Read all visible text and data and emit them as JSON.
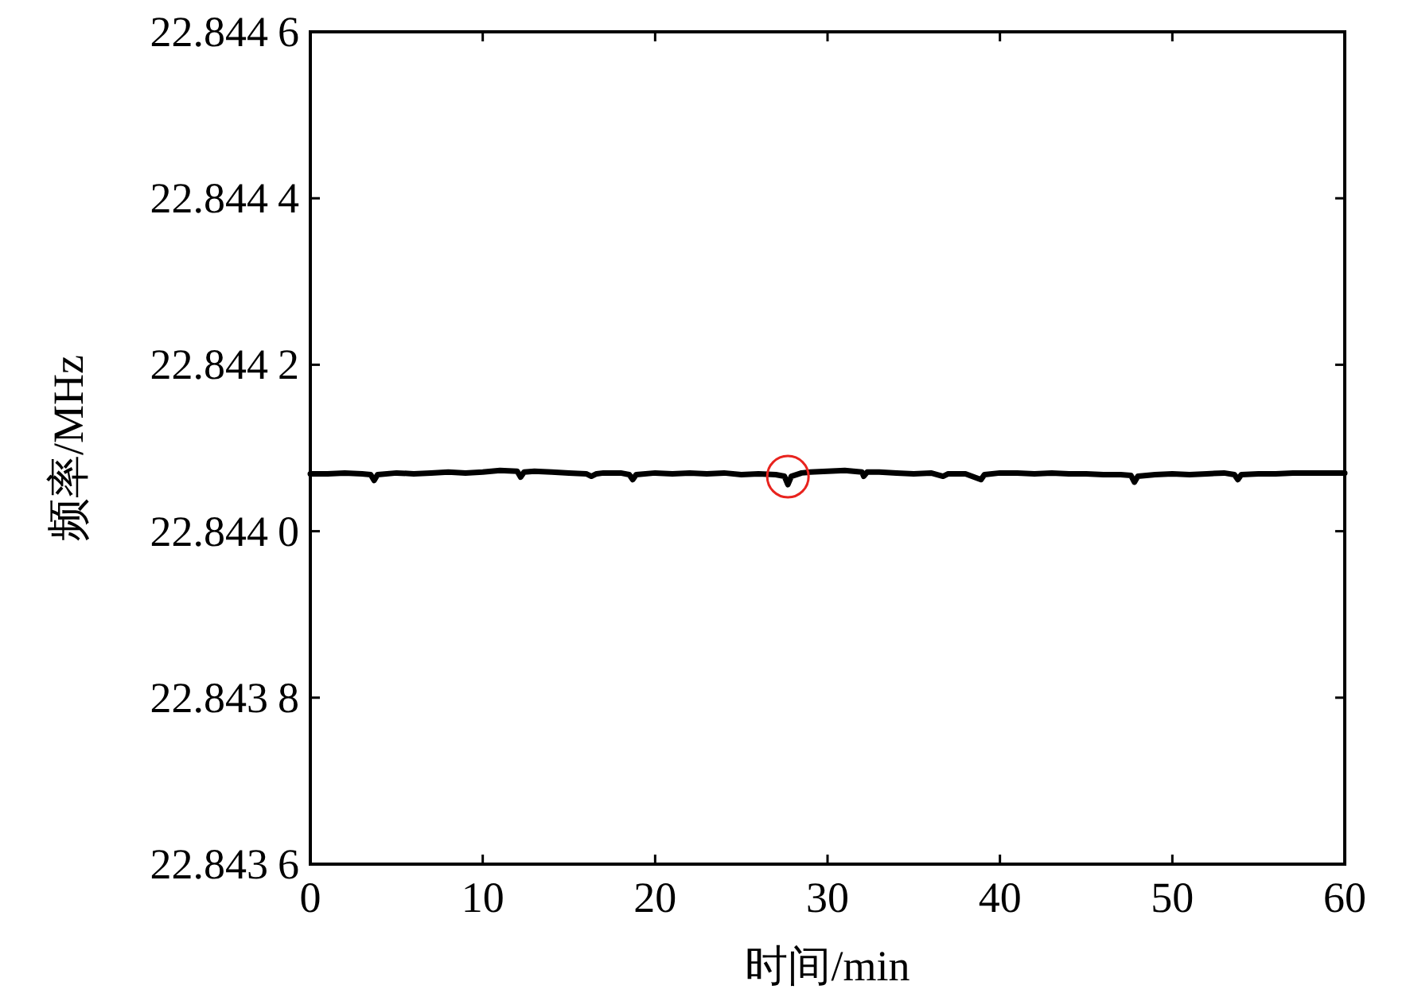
{
  "chart_data": {
    "type": "line",
    "xlabel": "时间/min",
    "ylabel": "频率/MHz",
    "xlim": [
      0,
      60
    ],
    "xticks": [
      0,
      10,
      20,
      30,
      40,
      50,
      60
    ],
    "ylim": [
      22.8436,
      22.8446
    ],
    "yticks": [
      22.8436,
      22.8438,
      {
        "value": 22.844,
        "label": "22.8440"
      },
      22.8442,
      22.8444,
      22.8446
    ],
    "grid": false,
    "marker": "none",
    "line_style": "solid",
    "series": [
      {
        "color": "#000000",
        "x": [
          0,
          1,
          2,
          3,
          3.5,
          3.7,
          3.9,
          5,
          6,
          7,
          8,
          9,
          10,
          11,
          12,
          12.2,
          12.4,
          13,
          14,
          15,
          16,
          16.3,
          16.6,
          17,
          18,
          18.5,
          18.7,
          18.9,
          20,
          21,
          22,
          23,
          24,
          25,
          26,
          27,
          27.5,
          27.7,
          27.9,
          28.5,
          29,
          30,
          31,
          32,
          32.1,
          32.3,
          33,
          34,
          35,
          36,
          36.7,
          37,
          38,
          38.9,
          39.1,
          40,
          41,
          42,
          43,
          44,
          45,
          46,
          47,
          47.6,
          47.8,
          48,
          49,
          50,
          51,
          52,
          53,
          53.6,
          53.8,
          54,
          55,
          56,
          57,
          58,
          59,
          60
        ],
        "values": [
          22.844069,
          22.844069,
          22.84407,
          22.844069,
          22.844068,
          22.844061,
          22.844068,
          22.84407,
          22.844069,
          22.84407,
          22.844071,
          22.84407,
          22.844071,
          22.844073,
          22.844072,
          22.844065,
          22.844071,
          22.844072,
          22.844071,
          22.84407,
          22.844069,
          22.844066,
          22.844069,
          22.84407,
          22.84407,
          22.844068,
          22.844062,
          22.844068,
          22.84407,
          22.844069,
          22.84407,
          22.844069,
          22.84407,
          22.844068,
          22.844069,
          22.844068,
          22.844066,
          22.844056,
          22.844066,
          22.84407,
          22.844071,
          22.844072,
          22.844073,
          22.844071,
          22.844066,
          22.844071,
          22.844071,
          22.84407,
          22.844069,
          22.84407,
          22.844066,
          22.844069,
          22.844069,
          22.844062,
          22.844068,
          22.84407,
          22.84407,
          22.844069,
          22.84407,
          22.844069,
          22.844069,
          22.844068,
          22.844068,
          22.844067,
          22.844059,
          22.844066,
          22.844068,
          22.844069,
          22.844068,
          22.844069,
          22.84407,
          22.844068,
          22.844062,
          22.844068,
          22.844069,
          22.844069,
          22.84407,
          22.84407,
          22.84407,
          22.84407
        ]
      }
    ]
  }
}
